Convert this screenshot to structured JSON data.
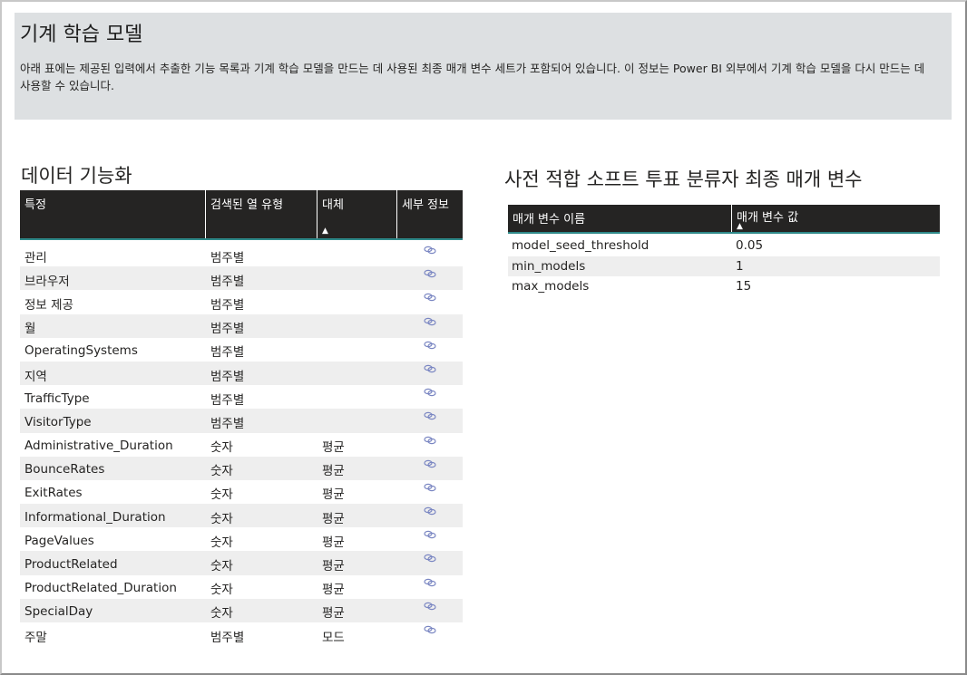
{
  "header": {
    "title": "기계 학습 모델",
    "description": "아래 표에는 제공된 입력에서 추출한 기능 목록과 기계 학습 모델을 만드는 데 사용된 최종 매개 변수 세트가 포함되어 있습니다. 이 정보는 Power BI 외부에서 기계 학습 모델을 다시 만드는 데 사용할 수 있습니다."
  },
  "featurization": {
    "title": "데이터 기능화",
    "columns": [
      "특정",
      "검색된 열 유형",
      "대체",
      "세부 정보"
    ],
    "sorted_column_index": 2,
    "detail_icon": "link-icon",
    "rows": [
      {
        "feature": "관리",
        "type": "범주별",
        "impute": ""
      },
      {
        "feature": "브라우저",
        "type": "범주별",
        "impute": ""
      },
      {
        "feature": "정보 제공",
        "type": "범주별",
        "impute": ""
      },
      {
        "feature": "월",
        "type": "범주별",
        "impute": ""
      },
      {
        "feature": "OperatingSystems",
        "type": "범주별",
        "impute": ""
      },
      {
        "feature": "지역",
        "type": "범주별",
        "impute": ""
      },
      {
        "feature": "TrafficType",
        "type": "범주별",
        "impute": ""
      },
      {
        "feature": "VisitorType",
        "type": "범주별",
        "impute": ""
      },
      {
        "feature": "Administrative_Duration",
        "type": "숫자",
        "impute": "평균"
      },
      {
        "feature": "BounceRates",
        "type": "숫자",
        "impute": "평균"
      },
      {
        "feature": "ExitRates",
        "type": "숫자",
        "impute": "평균"
      },
      {
        "feature": "Informational_Duration",
        "type": "숫자",
        "impute": "평균"
      },
      {
        "feature": "PageValues",
        "type": "숫자",
        "impute": "평균"
      },
      {
        "feature": "ProductRelated",
        "type": "숫자",
        "impute": "평균"
      },
      {
        "feature": "ProductRelated_Duration",
        "type": "숫자",
        "impute": "평균"
      },
      {
        "feature": "SpecialDay",
        "type": "숫자",
        "impute": "평균"
      },
      {
        "feature": "주말",
        "type": "범주별",
        "impute": "모드"
      }
    ]
  },
  "params": {
    "title": "사전 적합 소프트 투표 분류자 최종 매개 변수",
    "columns": [
      "매개 변수 이름",
      "매개 변수 값"
    ],
    "sorted_column_index": 1,
    "rows": [
      {
        "name": "model_seed_threshold",
        "value": "0.05"
      },
      {
        "name": "min_models",
        "value": "1"
      },
      {
        "name": "max_models",
        "value": "15"
      }
    ]
  },
  "colors": {
    "header_bg": "#dde0e2",
    "table_head_bg": "#252423",
    "table_head_accent": "#2f8a8a",
    "alt_row": "#eeeeee",
    "icon": "#7a86c2"
  }
}
